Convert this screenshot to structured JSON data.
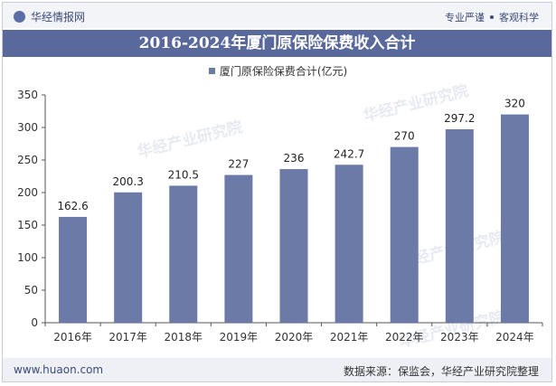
{
  "header": {
    "brand": "华经情报网",
    "tagline_left": "专业严谨",
    "tagline_right": "客观科学"
  },
  "title": "2016-2024年厦门原保险保费收入合计",
  "legend": {
    "label": "厦门原保险保费合计(亿元)"
  },
  "colors": {
    "bar": "#6b7aa6",
    "title_bg": "#59699b",
    "axis": "#555555"
  },
  "watermark": "华经产业研究院",
  "footer": {
    "website": "www.huaon.com",
    "source": "数据来源：保监会，华经产业研究院整理"
  },
  "chart_data": {
    "type": "bar",
    "title": "2016-2024年厦门原保险保费收入合计",
    "categories": [
      "2016年",
      "2017年",
      "2018年",
      "2019年",
      "2020年",
      "2021年",
      "2022年",
      "2023年",
      "2024年"
    ],
    "series": [
      {
        "name": "厦门原保险保费合计(亿元)",
        "values": [
          162.6,
          200.3,
          210.5,
          227,
          236,
          242.7,
          270,
          297.2,
          320
        ],
        "labels": [
          "162.6",
          "200.3",
          "210.5",
          "227",
          "236",
          "242.7",
          "270",
          "297.2",
          "320"
        ]
      }
    ],
    "yticks": [
      "0",
      "50",
      "100",
      "150",
      "200",
      "250",
      "300",
      "350"
    ],
    "ylim": [
      0,
      350
    ],
    "xlabel": "",
    "ylabel": "",
    "grid": false,
    "legend_position": "top"
  }
}
